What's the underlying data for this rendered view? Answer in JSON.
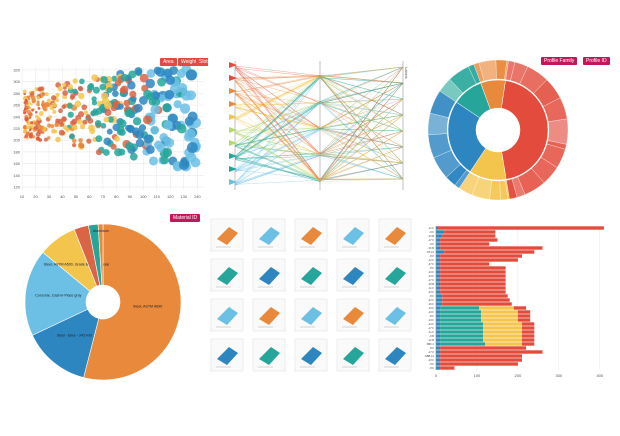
{
  "colors": {
    "blue": "#2e86c1",
    "teal": "#26a69a",
    "yellow": "#f4c54d",
    "orange": "#e9893c",
    "red": "#e34c3c",
    "lightblue": "#6cc0e5",
    "sunset": "#d96446",
    "navy": "#1f5f8b",
    "chip": "#c2185b",
    "grid": "#e6e6e6"
  },
  "chart_data": [
    {
      "type": "scatter",
      "controls": [
        "Area",
        "Weight",
        "Slots"
      ],
      "x_ticks": [
        "10",
        "20",
        "30",
        "40",
        "50",
        "60",
        "70",
        "80",
        "90",
        "100",
        "110",
        "120",
        "130",
        "140"
      ],
      "y_ticks": [
        "320",
        "300",
        "280",
        "260",
        "240",
        "220",
        "200",
        "180",
        "160",
        "140",
        "120"
      ],
      "xlim": [
        10,
        145
      ],
      "ylim": [
        115,
        325
      ],
      "grid": true
    },
    {
      "type": "parallel-coordinates",
      "axes": 3,
      "axis_label": "Labels"
    },
    {
      "type": "sunburst",
      "controls": [
        "Profile Family",
        "Profile ID"
      ],
      "inner": [
        {
          "color": "red",
          "value": 45
        },
        {
          "color": "yellow",
          "value": 12
        },
        {
          "color": "blue",
          "value": 25
        },
        {
          "color": "teal",
          "value": 10
        },
        {
          "color": "orange",
          "value": 8
        }
      ]
    },
    {
      "type": "pie",
      "controls": [
        "Material ID"
      ],
      "slices": [
        {
          "label": "Steel, ASTM A690",
          "value": 54,
          "color": "orange"
        },
        {
          "label": "Steel - Bare - 345 HSt",
          "value": 14,
          "color": "blue"
        },
        {
          "label": "Concrete, Cast-in-Place gray",
          "value": 18,
          "color": "lightblue"
        },
        {
          "label": "Steel, ASTM A500, Grade B, Rectangular",
          "value": 8,
          "color": "yellow"
        },
        {
          "label": "",
          "value": 3,
          "color": "sunset"
        },
        {
          "label": "",
          "value": 2,
          "color": "teal"
        },
        {
          "label": "Aluminum",
          "value": 1,
          "color": "orange"
        }
      ]
    },
    {
      "type": "table",
      "grid_rows": 4,
      "grid_cols": 5
    },
    {
      "type": "bar",
      "orientation": "horizontal",
      "stacked": true,
      "x_ticks": [
        "0",
        "100",
        "200",
        "300",
        "400"
      ],
      "xlim": [
        0,
        420
      ],
      "categories": [
        "-11 F",
        "-9 F",
        "-13 B",
        "-17 F",
        "-9 F",
        "-16 B",
        "OT-12",
        "-8 F",
        "-12 F",
        "-17 F",
        "-8 F",
        "-13 F",
        "-10 F",
        "-17 F",
        "-18 B",
        "-11 F",
        "-13 F",
        "-8 F",
        "-12 F",
        "-16 F",
        "-10 F",
        "-13 F",
        "-8 F",
        "-13 F",
        "-12 F",
        "-17 F",
        "-11 F",
        "-9 B",
        "-12 B",
        "SBF-1",
        "-8 F",
        "-17 F",
        "GBB-12",
        "-10 F",
        "-9 F",
        "-8 F"
      ],
      "series": [
        {
          "color": "blue",
          "values": [
            5,
            20,
            15,
            10,
            10,
            10,
            20,
            10,
            10,
            10,
            10,
            10,
            10,
            10,
            10,
            10,
            10,
            15,
            15,
            15,
            10,
            10,
            10,
            10,
            10,
            10,
            10,
            10,
            10,
            10,
            10,
            10,
            10,
            10,
            10,
            10
          ]
        },
        {
          "color": "teal",
          "values": [
            0,
            0,
            0,
            0,
            0,
            0,
            0,
            0,
            0,
            0,
            0,
            0,
            0,
            0,
            0,
            0,
            0,
            0,
            0,
            0,
            95,
            100,
            100,
            100,
            105,
            105,
            105,
            105,
            105,
            110,
            0,
            0,
            0,
            0,
            0,
            0
          ]
        },
        {
          "color": "yellow",
          "values": [
            0,
            0,
            0,
            0,
            0,
            0,
            0,
            0,
            0,
            0,
            0,
            0,
            0,
            0,
            0,
            0,
            0,
            0,
            0,
            0,
            85,
            90,
            90,
            90,
            95,
            95,
            95,
            95,
            95,
            90,
            0,
            0,
            0,
            0,
            0,
            0
          ]
        },
        {
          "color": "red",
          "values": [
            405,
            125,
            130,
            140,
            120,
            250,
            220,
            200,
            190,
            120,
            160,
            160,
            160,
            160,
            160,
            160,
            160,
            160,
            165,
            170,
            30,
            30,
            30,
            30,
            30,
            30,
            30,
            30,
            30,
            30,
            210,
            250,
            200,
            200,
            190,
            35
          ]
        }
      ]
    }
  ]
}
